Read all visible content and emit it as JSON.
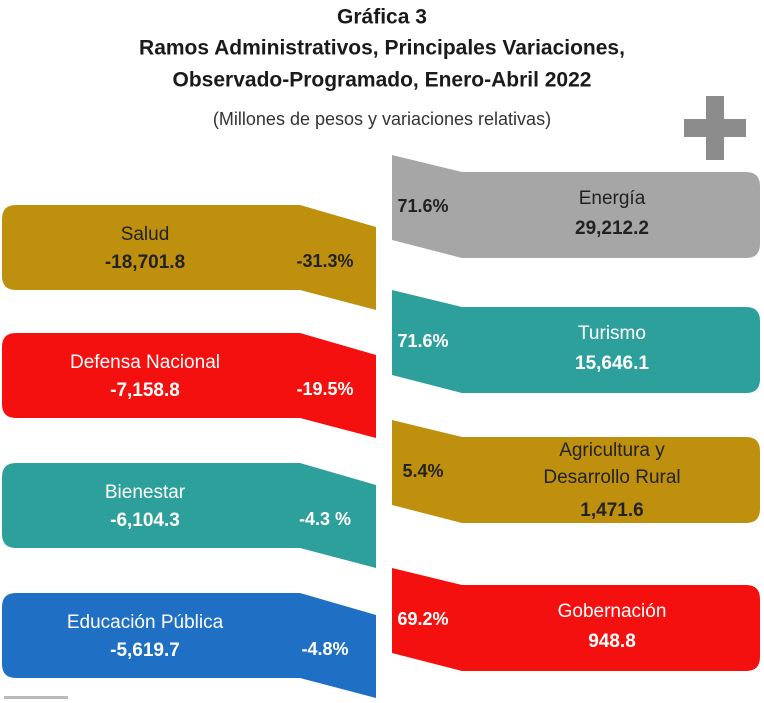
{
  "header": {
    "title": [
      "Gráfica 3",
      "Ramos Administrativos, Principales Variaciones,",
      "Observado-Programado, Enero-Abril 2022"
    ],
    "subtitle": "(Millones de pesos y variaciones relativas)"
  },
  "decreases": [
    {
      "name": "Salud",
      "value": "-18,701.8",
      "change": "-31.3%",
      "color": "#bf900d"
    },
    {
      "name": "Defensa Nacional",
      "value": "-7,158.8",
      "change": "-19.5%",
      "color": "#f51010"
    },
    {
      "name": "Bienestar",
      "value": "-6,104.3",
      "change": "-4.3 %",
      "color": "#2ea09c"
    },
    {
      "name": "Educación Pública",
      "value": "-5,619.7",
      "change": "-4.8%",
      "color": "#1f6fc4"
    }
  ],
  "increases": [
    {
      "name": "Energía",
      "value": "29,212.2",
      "change": "71.6%",
      "color": "#a6a6a6"
    },
    {
      "name": "Turismo",
      "value": "15,646.1",
      "change": "71.6%",
      "color": "#2ea09c"
    },
    {
      "name": [
        "Agricultura y",
        "Desarrollo Rural"
      ],
      "value": "1,471.6",
      "change": "5.4%",
      "color": "#bf900d"
    },
    {
      "name": "Gobernación",
      "value": "948.8",
      "change": "69.2%",
      "color": "#f51010"
    }
  ]
}
